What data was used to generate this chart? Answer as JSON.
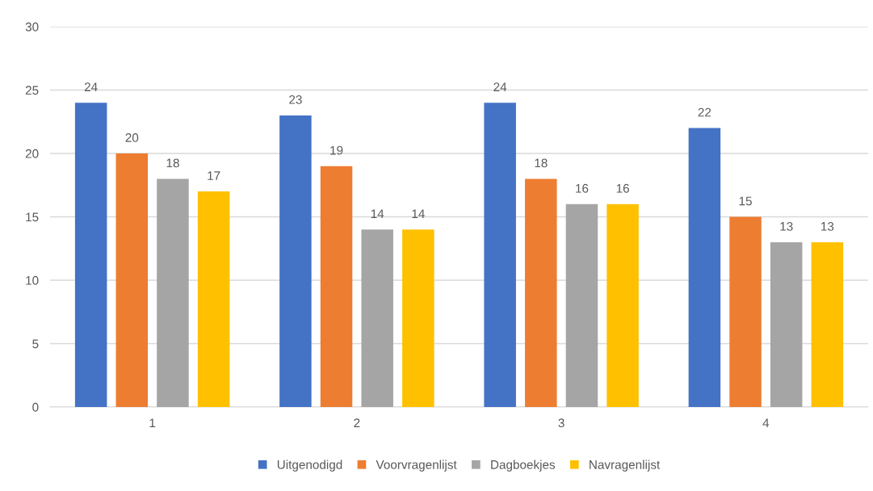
{
  "chart_data": {
    "type": "bar",
    "categories": [
      "1",
      "2",
      "3",
      "4"
    ],
    "series": [
      {
        "name": "Uitgenodigd",
        "color": "#4472c4",
        "values": [
          24,
          23,
          24,
          22
        ]
      },
      {
        "name": "Voorvragenlijst",
        "color": "#ed7d31",
        "values": [
          20,
          19,
          18,
          15
        ]
      },
      {
        "name": "Dagboekjes",
        "color": "#a5a5a5",
        "values": [
          18,
          14,
          16,
          13
        ]
      },
      {
        "name": "Navragenlijst",
        "color": "#ffc000",
        "values": [
          17,
          14,
          16,
          13
        ]
      }
    ],
    "ylim": [
      0,
      30
    ],
    "yticks": [
      0,
      5,
      10,
      15,
      20,
      25,
      30
    ],
    "grid": "y",
    "legend": "bottom",
    "data_labels": true
  }
}
